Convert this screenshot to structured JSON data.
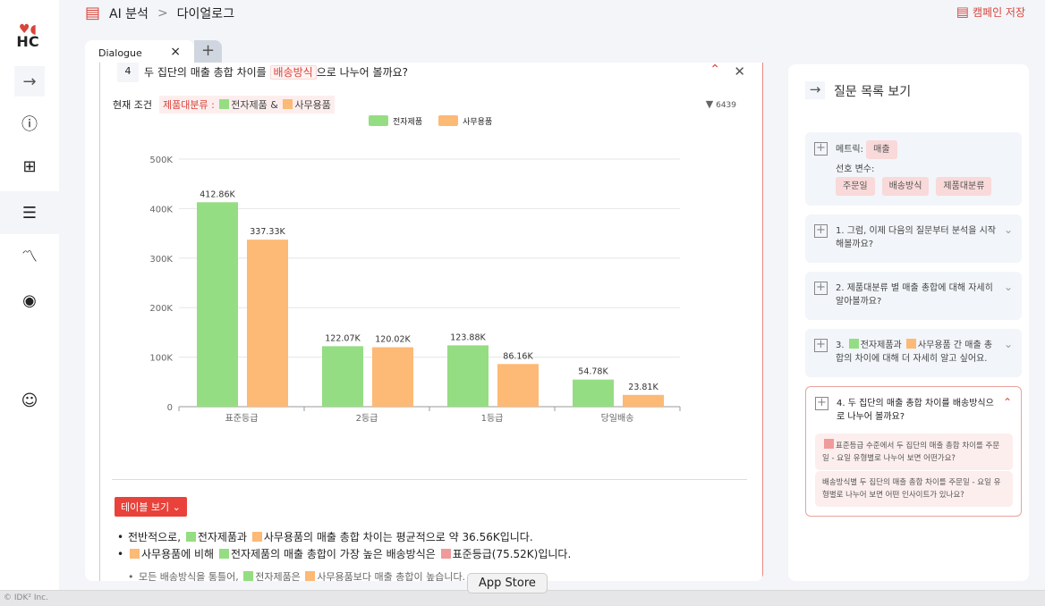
{
  "breadcrumb": {
    "section": "AI 분석",
    "separator": ">",
    "page": "다이얼로그"
  },
  "header": {
    "save_label": "캠페인 저장"
  },
  "brand": {
    "logo_text": "HC",
    "accent": "#d9453b"
  },
  "tab": {
    "label": "Dialogue",
    "close": "×",
    "add": "+"
  },
  "question": {
    "number": "4",
    "text_before": "두 집단의 매출 총합 차이를",
    "highlight": "배송방식",
    "text_after": "으로 나누어 볼까요?"
  },
  "condition": {
    "label": "현재 조건",
    "key": "제품대분류 :",
    "v1": "전자제품",
    "amp": "&",
    "v2": "사무용품",
    "count": "6439"
  },
  "chart_data": {
    "type": "bar",
    "categories": [
      "표준등급",
      "2등급",
      "1등급",
      "당일배송"
    ],
    "series": [
      {
        "name": "전자제품",
        "color": "#95dd82",
        "values": [
          412.86,
          122.07,
          123.88,
          54.78
        ],
        "labels": [
          "412.86K",
          "122.07K",
          "123.88K",
          "54.78K"
        ]
      },
      {
        "name": "사무용품",
        "color": "#fdb976",
        "values": [
          337.33,
          120.02,
          86.16,
          23.81
        ],
        "labels": [
          "337.33K",
          "120.02K",
          "86.16K",
          "23.81K"
        ]
      }
    ],
    "yticks": [
      "0",
      "100K",
      "200K",
      "300K",
      "400K",
      "500K"
    ],
    "ylim": [
      0,
      500
    ],
    "unit": "K",
    "grid": true,
    "legend": "top"
  },
  "table_button": "테이블 보기",
  "insights": {
    "b1": {
      "a": "전반적으로,",
      "b": "전자제품과",
      "c": "사무용품의 매출 총합 차이는 평균적으로 약 36.56K입니다."
    },
    "b2": {
      "a": "사무용품에 비해",
      "b": "전자제품의 매출 총합이 가장 높은 배송방식은",
      "c": "표준등급(75.52K)입니다."
    },
    "b3": {
      "a": "모든 배송방식을 통틀어,",
      "b": "전자제품은",
      "c": "사무용품보다 매출 총합이 높습니다."
    }
  },
  "right_panel": {
    "title": "질문 목록 보기",
    "metric_label": "메트릭:",
    "metric": "매출",
    "pref_label": "선호 변수:",
    "prefs": [
      "주문일",
      "배송방식",
      "제품대분류"
    ],
    "q1": "1. 그럼, 이제 다음의 질문부터 분석을 시작해볼까요?",
    "q2": "2. 제품대분류 별 매출 총합에 대해 자세히 알아볼까요?",
    "q3a": "3.",
    "q3b": "전자제품과",
    "q3c": "사무용품 간 매출 총합의 차이에 대해 더 자세히 알고 싶어요.",
    "q4": "4. 두 집단의 매출 총합 차이를 배송방식으로 나누어 볼까요?",
    "s1": "표준등급 수준에서 두 집단의 매출 총합 차이를 주문일 - 요일 유형별로 나누어 보면 어떤가요?",
    "s2": "배송방식별 두 집단의 매출 총합 차이를 주문일 - 요일 유형별로 나누어 보면 어떤 인사이트가 있나요?"
  },
  "footer": {
    "copyright": "© IDK² Inc.",
    "tooltip": "App Store"
  }
}
